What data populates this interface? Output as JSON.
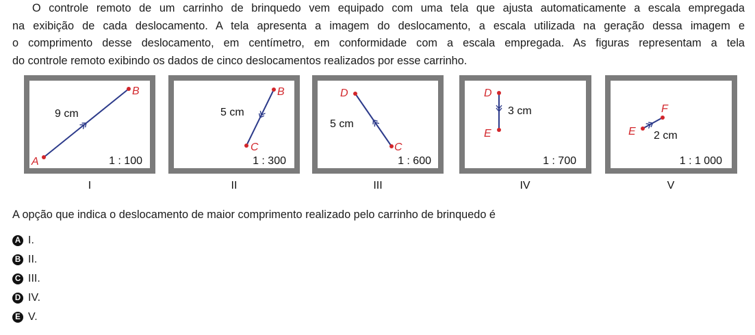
{
  "statement": {
    "lines": [
      "O controle remoto de um carrinho de brinquedo vem equipado com uma tela que ajusta automaticamente a escala empregada",
      "na exibição de cada deslocamento. A tela apresenta a imagem do deslocamento, a escala utilizada na geração dessa imagem e",
      "o comprimento desse deslocamento, em centímetro, em conformidade com a escala empregada. As figuras representam a tela",
      "do controle remoto exibindo os dados de cinco deslocamentos realizados por esse carrinho."
    ]
  },
  "figures": [
    {
      "numeral": "I",
      "start": "A",
      "end": "B",
      "length": "9 cm",
      "scale": "1 : 100"
    },
    {
      "numeral": "II",
      "start": "B",
      "end": "C",
      "length": "5 cm",
      "scale": "1 : 300"
    },
    {
      "numeral": "III",
      "start": "C",
      "end": "D",
      "length": "5 cm",
      "scale": "1 : 600"
    },
    {
      "numeral": "IV",
      "start": "D",
      "end": "E",
      "length": "3 cm",
      "scale": "1 : 700"
    },
    {
      "numeral": "V",
      "start": "E",
      "end": "F",
      "length": "2 cm",
      "scale": "1 : 1 000"
    }
  ],
  "colors": {
    "frame": "#7b7b7b",
    "segment": "#2c3a8a",
    "point": "#d2262b"
  },
  "question": "A opção que indica o deslocamento de maior comprimento realizado pelo carrinho de brinquedo é",
  "options": [
    {
      "letter": "A",
      "text": "I."
    },
    {
      "letter": "B",
      "text": "II."
    },
    {
      "letter": "C",
      "text": "III."
    },
    {
      "letter": "D",
      "text": "IV."
    },
    {
      "letter": "E",
      "text": "V."
    }
  ]
}
